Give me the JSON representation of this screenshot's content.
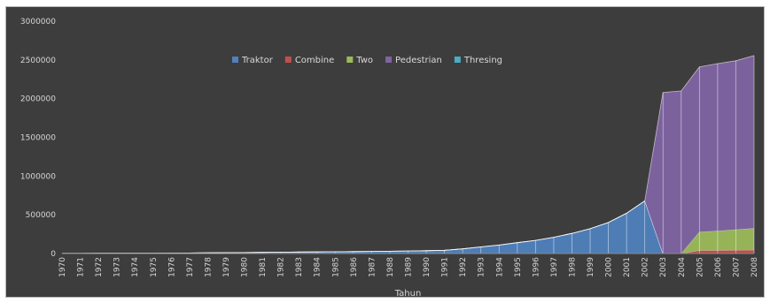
{
  "chart_data": {
    "type": "area",
    "stacked": true,
    "title": "",
    "xlabel": "Tahun",
    "ylabel": "",
    "ylim": [
      0,
      3000000
    ],
    "yticks": [
      0,
      500000,
      1000000,
      1500000,
      2000000,
      2500000,
      3000000
    ],
    "grid": false,
    "legend": "top-center",
    "x": [
      1970,
      1971,
      1972,
      1973,
      1974,
      1975,
      1976,
      1977,
      1978,
      1979,
      1980,
      1981,
      1982,
      1983,
      1984,
      1985,
      1986,
      1987,
      1988,
      1989,
      1990,
      1991,
      1992,
      1993,
      1994,
      1995,
      1996,
      1997,
      1998,
      1999,
      2000,
      2001,
      2002,
      2003,
      2004,
      2005,
      2006,
      2007,
      2008
    ],
    "series": [
      {
        "name": "Traktor",
        "color": "#4f81bd",
        "values": [
          2000,
          2500,
          3000,
          3500,
          4000,
          5000,
          6000,
          7000,
          9000,
          11000,
          13000,
          15000,
          17000,
          19000,
          21000,
          23000,
          25000,
          27000,
          30000,
          33000,
          37000,
          42000,
          60000,
          85000,
          110000,
          140000,
          170000,
          210000,
          260000,
          320000,
          400000,
          520000,
          680000,
          0,
          0,
          0,
          0,
          0,
          0
        ]
      },
      {
        "name": "Combine",
        "color": "#c0504d",
        "values": [
          0,
          0,
          0,
          0,
          0,
          0,
          0,
          0,
          0,
          0,
          0,
          0,
          0,
          0,
          0,
          0,
          0,
          0,
          0,
          0,
          0,
          0,
          0,
          0,
          0,
          0,
          0,
          0,
          0,
          0,
          0,
          0,
          0,
          0,
          0,
          40000,
          42000,
          44000,
          46000
        ]
      },
      {
        "name": "Two",
        "color": "#9bbb59",
        "values": [
          0,
          0,
          0,
          0,
          0,
          0,
          0,
          0,
          0,
          0,
          0,
          0,
          0,
          0,
          0,
          0,
          0,
          0,
          0,
          0,
          0,
          0,
          0,
          0,
          0,
          0,
          0,
          0,
          0,
          0,
          0,
          0,
          0,
          0,
          0,
          240000,
          250000,
          265000,
          280000
        ]
      },
      {
        "name": "Pedestrian",
        "color": "#8064a2",
        "values": [
          0,
          0,
          0,
          0,
          0,
          0,
          0,
          0,
          0,
          0,
          0,
          0,
          0,
          0,
          0,
          0,
          0,
          0,
          0,
          0,
          0,
          0,
          0,
          0,
          0,
          0,
          0,
          0,
          0,
          0,
          0,
          0,
          0,
          2080000,
          2100000,
          2130000,
          2160000,
          2180000,
          2230000
        ]
      },
      {
        "name": "Thresing",
        "color": "#4bacc6",
        "values": [
          0,
          0,
          0,
          0,
          0,
          0,
          0,
          0,
          0,
          0,
          0,
          0,
          0,
          0,
          0,
          0,
          0,
          0,
          0,
          0,
          0,
          0,
          0,
          0,
          0,
          0,
          0,
          0,
          0,
          0,
          0,
          0,
          0,
          0,
          0,
          0,
          0,
          0,
          0
        ]
      }
    ]
  }
}
